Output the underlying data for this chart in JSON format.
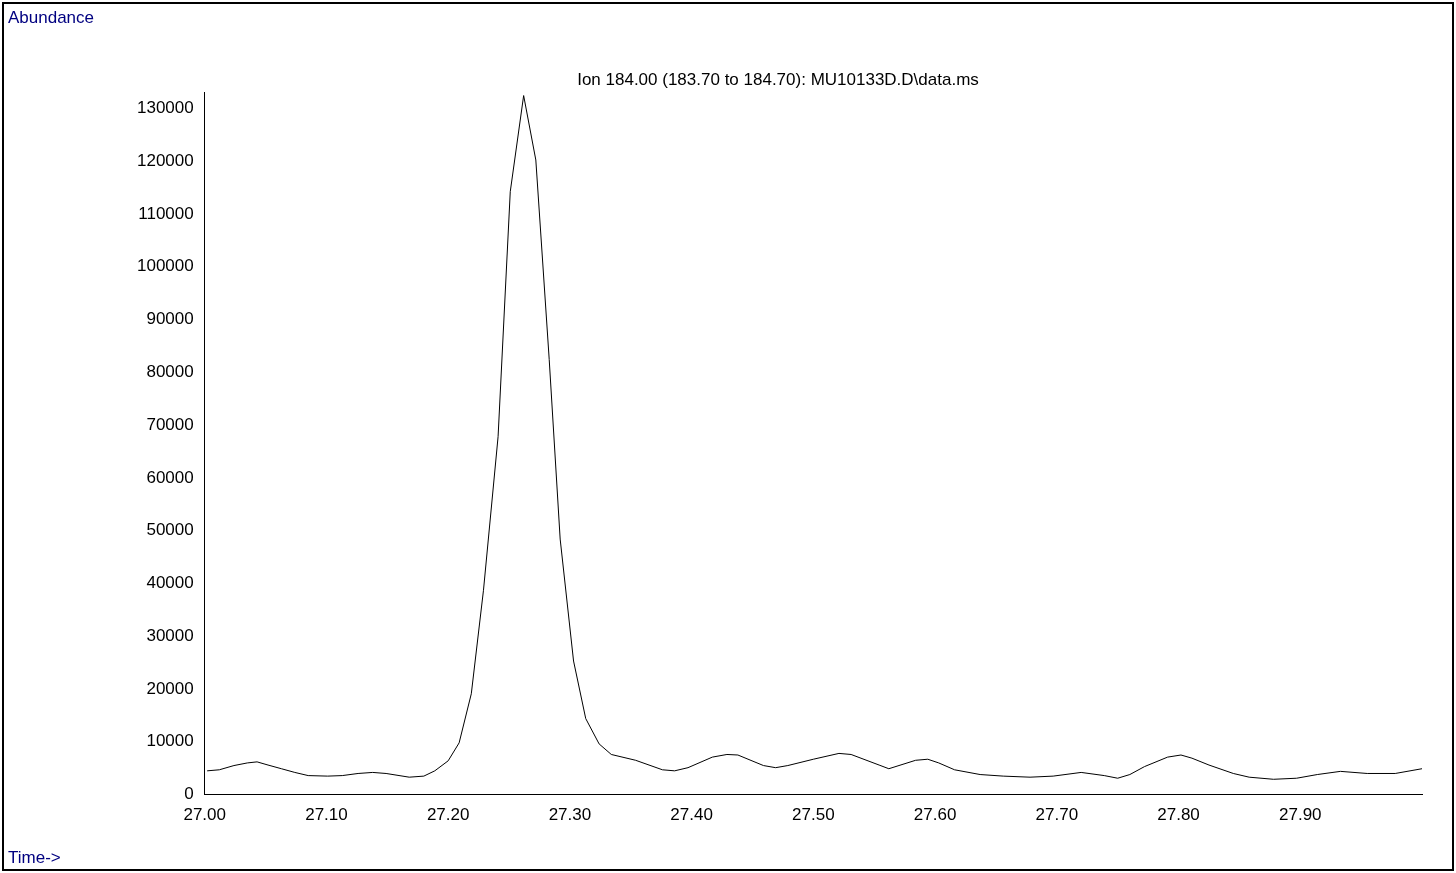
{
  "chart_data": {
    "type": "line",
    "title": "Ion 184.00 (183.70 to 184.70): MU10133D.D\\data.ms",
    "xlabel": "Time->",
    "ylabel": "Abundance",
    "color": "#000000",
    "x": [
      27.002,
      27.012,
      27.024,
      27.035,
      27.043,
      27.052,
      27.063,
      27.074,
      27.085,
      27.101,
      27.113,
      27.126,
      27.138,
      27.149,
      27.168,
      27.18,
      27.189,
      27.2,
      27.209,
      27.219,
      27.229,
      27.241,
      27.251,
      27.262,
      27.272,
      27.283,
      27.292,
      27.303,
      27.313,
      27.324,
      27.334,
      27.354,
      27.376,
      27.386,
      27.397,
      27.417,
      27.429,
      27.438,
      27.459,
      27.469,
      27.479,
      27.5,
      27.521,
      27.531,
      27.554,
      27.562,
      27.584,
      27.594,
      27.603,
      27.616,
      27.637,
      27.656,
      27.678,
      27.697,
      27.72,
      27.739,
      27.75,
      27.76,
      27.772,
      27.791,
      27.802,
      27.811,
      27.825,
      27.845,
      27.858,
      27.878,
      27.897,
      27.914,
      27.933,
      27.955,
      27.978,
      28.0
    ],
    "values": [
      4500,
      4700,
      5500,
      6000,
      6200,
      5600,
      4900,
      4200,
      3600,
      3500,
      3600,
      4000,
      4200,
      4000,
      3300,
      3500,
      4500,
      6400,
      9800,
      19100,
      38700,
      67800,
      114200,
      132400,
      120200,
      82400,
      48400,
      25300,
      14400,
      9600,
      7600,
      6500,
      4700,
      4500,
      5100,
      7100,
      7600,
      7500,
      5500,
      5100,
      5500,
      6700,
      7800,
      7600,
      5600,
      4900,
      6500,
      6700,
      6000,
      4700,
      3800,
      3500,
      3300,
      3500,
      4200,
      3600,
      3100,
      3800,
      5300,
      7100,
      7500,
      6900,
      5600,
      4000,
      3300,
      2900,
      3100,
      3800,
      4400,
      4000,
      4000,
      4900
    ],
    "xlim": [
      27.0,
      28.0
    ],
    "xticks": [
      {
        "value": 27.0,
        "label": "27.00"
      },
      {
        "value": 27.1,
        "label": "27.10"
      },
      {
        "value": 27.2,
        "label": "27.20"
      },
      {
        "value": 27.3,
        "label": "27.30"
      },
      {
        "value": 27.4,
        "label": "27.40"
      },
      {
        "value": 27.5,
        "label": "27.50"
      },
      {
        "value": 27.6,
        "label": "27.60"
      },
      {
        "value": 27.7,
        "label": "27.70"
      },
      {
        "value": 27.8,
        "label": "27.80"
      },
      {
        "value": 27.9,
        "label": "27.90"
      }
    ],
    "ylim": [
      0,
      133000
    ],
    "yticks": [
      0,
      10000,
      20000,
      30000,
      40000,
      50000,
      60000,
      70000,
      80000,
      90000,
      100000,
      110000,
      120000,
      130000
    ],
    "grid": false,
    "legend": false
  }
}
